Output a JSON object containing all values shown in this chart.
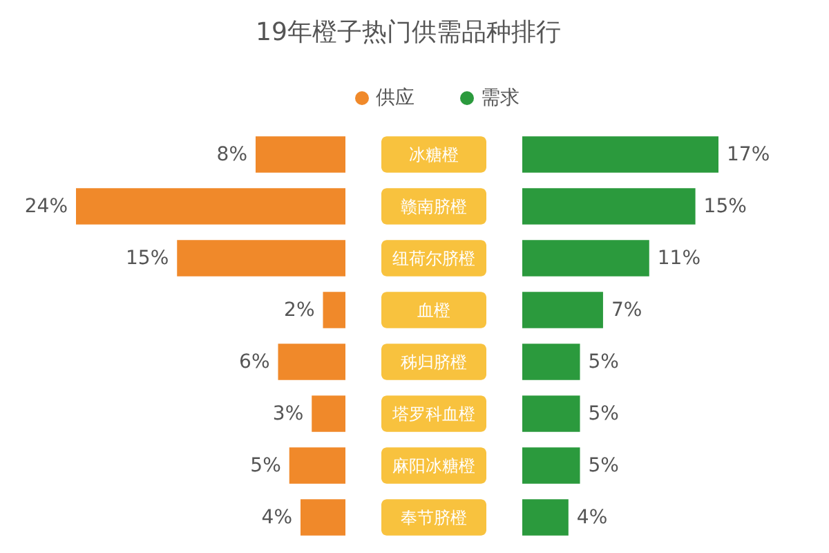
{
  "chart_data": [
    {
      "type": "bar",
      "title": "19年橙子热门供需品种排行",
      "orientation": "horizontal",
      "categories": [
        "冰糖橙",
        "赣南脐橙",
        "纽荷尔脐橙",
        "血橙",
        "秭归脐橙",
        "塔罗科血橙",
        "麻阳冰糖橙",
        "奉节脐橙"
      ],
      "series": [
        {
          "name": "供应",
          "color": "#f0892a",
          "values": [
            8,
            24,
            15,
            2,
            6,
            3,
            5,
            4
          ],
          "value_labels": [
            "8%",
            "24%",
            "15%",
            "2%",
            "6%",
            "3%",
            "5%",
            "4%"
          ]
        }
      ],
      "xlim": [
        24,
        0
      ],
      "legend": "top right",
      "tick_labels": "y"
    },
    {
      "type": "bar",
      "orientation": "horizontal",
      "series": [
        {
          "name": "需求",
          "color": "#2b9a3d",
          "values": [
            17,
            15,
            11,
            7,
            5,
            5,
            5,
            4
          ],
          "value_labels": [
            "17%",
            "15%",
            "11%",
            "7%",
            "5%",
            "5%",
            "5%",
            "4%"
          ]
        }
      ],
      "xlim": [
        0,
        17
      ],
      "legend": "top left",
      "tick_labels": false
    }
  ]
}
